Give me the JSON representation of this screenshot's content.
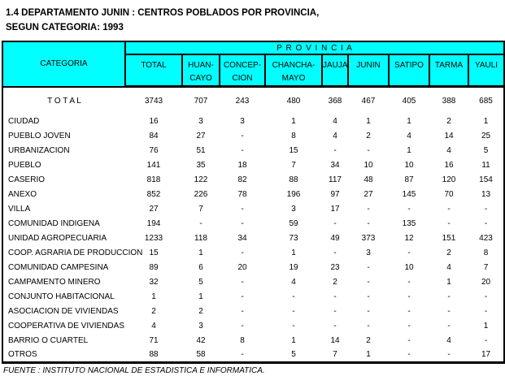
{
  "title": {
    "line1": "1.4  DEPARTAMENTO JUNIN : CENTROS POBLADOS POR PROVINCIA,",
    "line2": "SEGUN CATEGORIA: 1993"
  },
  "colors": {
    "header_bg": "#00ffff",
    "border": "#000000",
    "text": "#000000"
  },
  "table": {
    "header": {
      "category_label": "CATEGORIA",
      "province_group_label": "P R O V I N C I A",
      "columns": [
        "TOTAL",
        "HUAN-\nCAYO",
        "CONCEP-\nCION",
        "CHANCHA-\nMAYO",
        "JAUJA",
        "JUNIN",
        "SATIPO",
        "TARMA",
        "YAULI"
      ]
    },
    "total_row": {
      "label": "T O T A L",
      "values": [
        "3743",
        "707",
        "243",
        "480",
        "368",
        "467",
        "405",
        "388",
        "685"
      ]
    },
    "rows": [
      {
        "label": "CIUDAD",
        "values": [
          "16",
          "3",
          "3",
          "1",
          "4",
          "1",
          "1",
          "2",
          "1"
        ]
      },
      {
        "label": "PUEBLO JOVEN",
        "values": [
          "84",
          "27",
          "-",
          "8",
          "4",
          "2",
          "4",
          "14",
          "25"
        ]
      },
      {
        "label": "URBANIZACION",
        "values": [
          "76",
          "51",
          "-",
          "15",
          "-",
          "-",
          "1",
          "4",
          "5"
        ]
      },
      {
        "label": "PUEBLO",
        "values": [
          "141",
          "35",
          "18",
          "7",
          "34",
          "10",
          "10",
          "16",
          "11"
        ]
      },
      {
        "label": "CASERIO",
        "values": [
          "818",
          "122",
          "82",
          "88",
          "117",
          "48",
          "87",
          "120",
          "154"
        ]
      },
      {
        "label": "ANEXO",
        "values": [
          "852",
          "226",
          "78",
          "196",
          "97",
          "27",
          "145",
          "70",
          "13"
        ]
      },
      {
        "label": "VILLA",
        "values": [
          "27",
          "7",
          "-",
          "3",
          "17",
          "-",
          "-",
          "-",
          "-"
        ]
      },
      {
        "label": "COMUNIDAD INDIGENA",
        "values": [
          "194",
          "-",
          "-",
          "59",
          "-",
          "-",
          "135",
          "-",
          "-"
        ]
      },
      {
        "label": "UNIDAD AGROPECUARIA",
        "values": [
          "1233",
          "118",
          "34",
          "73",
          "49",
          "373",
          "12",
          "151",
          "423"
        ]
      },
      {
        "label": "COOP. AGRARIA DE PRODUCCION",
        "values": [
          "15",
          "1",
          "-",
          "1",
          "-",
          "3",
          "-",
          "2",
          "8"
        ]
      },
      {
        "label": "COMUNIDAD CAMPESINA",
        "values": [
          "89",
          "6",
          "20",
          "19",
          "23",
          "-",
          "10",
          "4",
          "7"
        ]
      },
      {
        "label": "CAMPAMENTO MINERO",
        "values": [
          "32",
          "5",
          "-",
          "4",
          "2",
          "-",
          "-",
          "1",
          "20"
        ]
      },
      {
        "label": "CONJUNTO HABITACIONAL",
        "values": [
          "1",
          "1",
          "-",
          "-",
          "-",
          "-",
          "-",
          "-",
          "-"
        ]
      },
      {
        "label": "ASOCIACION DE VIVIENDAS",
        "values": [
          "2",
          "2",
          "-",
          "-",
          "-",
          "-",
          "-",
          "-",
          "-"
        ]
      },
      {
        "label": "COOPERATIVA DE VIVIENDAS",
        "values": [
          "4",
          "3",
          "-",
          "-",
          "-",
          "-",
          "-",
          "-",
          "1"
        ]
      },
      {
        "label": "BARRIO O CUARTEL",
        "values": [
          "71",
          "42",
          "8",
          "1",
          "14",
          "2",
          "-",
          "4",
          "-"
        ]
      },
      {
        "label": "OTROS",
        "values": [
          "88",
          "58",
          "-",
          "5",
          "7",
          "1",
          "-",
          "-",
          "17"
        ]
      }
    ]
  },
  "footer": {
    "source": "FUENTE : INSTITUTO NACIONAL DE ESTADISTICA E INFORMATICA."
  }
}
